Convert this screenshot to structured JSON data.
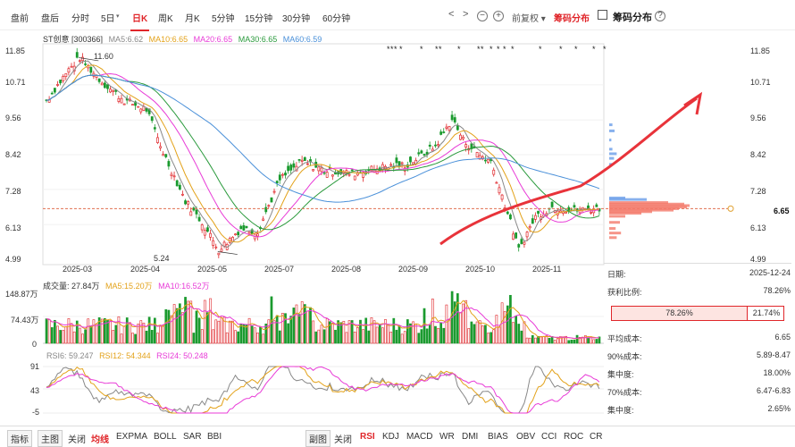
{
  "tabs": [
    "盘前",
    "盘后",
    "分时",
    "5日",
    "日K",
    "周K",
    "月K",
    "5分钟",
    "15分钟",
    "30分钟",
    "60分钟"
  ],
  "controls": {
    "adjust": "前复权",
    "chip_btn": "筹码分布",
    "chip_title": "筹码分布",
    "help": "?",
    "prev": "<",
    "next": ">",
    "minus": "−",
    "plus": "+"
  },
  "legend": {
    "name": "ST创意 [300366]",
    "ma5": "MA5:6.62",
    "ma10": "MA10:6.65",
    "ma20": "MA20:6.65",
    "ma30": "MA30:6.65",
    "ma60": "MA60:6.59"
  },
  "colors": {
    "up": "#e0262a",
    "down": "#1a9a2e",
    "ma5": "#888888",
    "ma10": "#e3a21a",
    "ma20": "#e83bd7",
    "ma30": "#2a9a3c",
    "ma60": "#4a90d9",
    "chip_red": "#f47a6b",
    "chip_blue": "#6a9ee8"
  },
  "price_axis": [
    "11.85",
    "10.71",
    "9.56",
    "8.42",
    "7.28",
    "6.13",
    "4.99"
  ],
  "price_axis_right": [
    "11.85",
    "10.71",
    "9.56",
    "8.42",
    "7.28",
    "6.65",
    "6.13",
    "4.99"
  ],
  "date_axis": [
    "2025-03",
    "2025-04",
    "2025-05",
    "2025-07",
    "2025-08",
    "2025-09",
    "2025-10",
    "2025-11"
  ],
  "annotations": {
    "high": "11.60",
    "low": "5.24"
  },
  "volume": {
    "title": "成交量: 27.84万",
    "ma5": "MA5:15.20万",
    "ma10": "MA10:16.52万",
    "axis": [
      "148.87万",
      "74.43万",
      "0"
    ]
  },
  "rsi": {
    "r6": "RSI6: 59.247",
    "r12": "RSI12: 54.344",
    "r24": "RSI24: 50.248",
    "axis": [
      "91",
      "43",
      "-5"
    ]
  },
  "chip_panel": {
    "date_label": "日期:",
    "date": "2025-12-24",
    "profit_label": "获利比例:",
    "profit": "78.26%",
    "bar_left": "78.26%",
    "bar_right": "21.74%",
    "avg_label": "平均成本:",
    "avg": "6.65",
    "c90_label": "90%成本:",
    "c90": "5.89-8.47",
    "con1_label": "集中度:",
    "con1": "18.00%",
    "c70_label": "70%成本:",
    "c70": "6.47-6.83",
    "con2_label": "集中度:",
    "con2": "2.65%"
  },
  "bottom_left": [
    "指标",
    "主图",
    "关闭",
    "均线",
    "EXPMA",
    "BOLL",
    "SAR",
    "BBI"
  ],
  "bottom_right": [
    "副图",
    "关闭",
    "RSI",
    "KDJ",
    "MACD",
    "WR",
    "DMI",
    "BIAS",
    "OBV",
    "CCI",
    "ROC",
    "CR"
  ],
  "chart_data": {
    "type": "candlestick",
    "ylim": [
      4.99,
      11.85
    ],
    "ma_last": {
      "MA5": 6.62,
      "MA10": 6.65,
      "MA20": 6.65,
      "MA30": 6.65,
      "MA60": 6.59
    },
    "high": 11.6,
    "low": 5.24,
    "last_close": 6.65
  }
}
